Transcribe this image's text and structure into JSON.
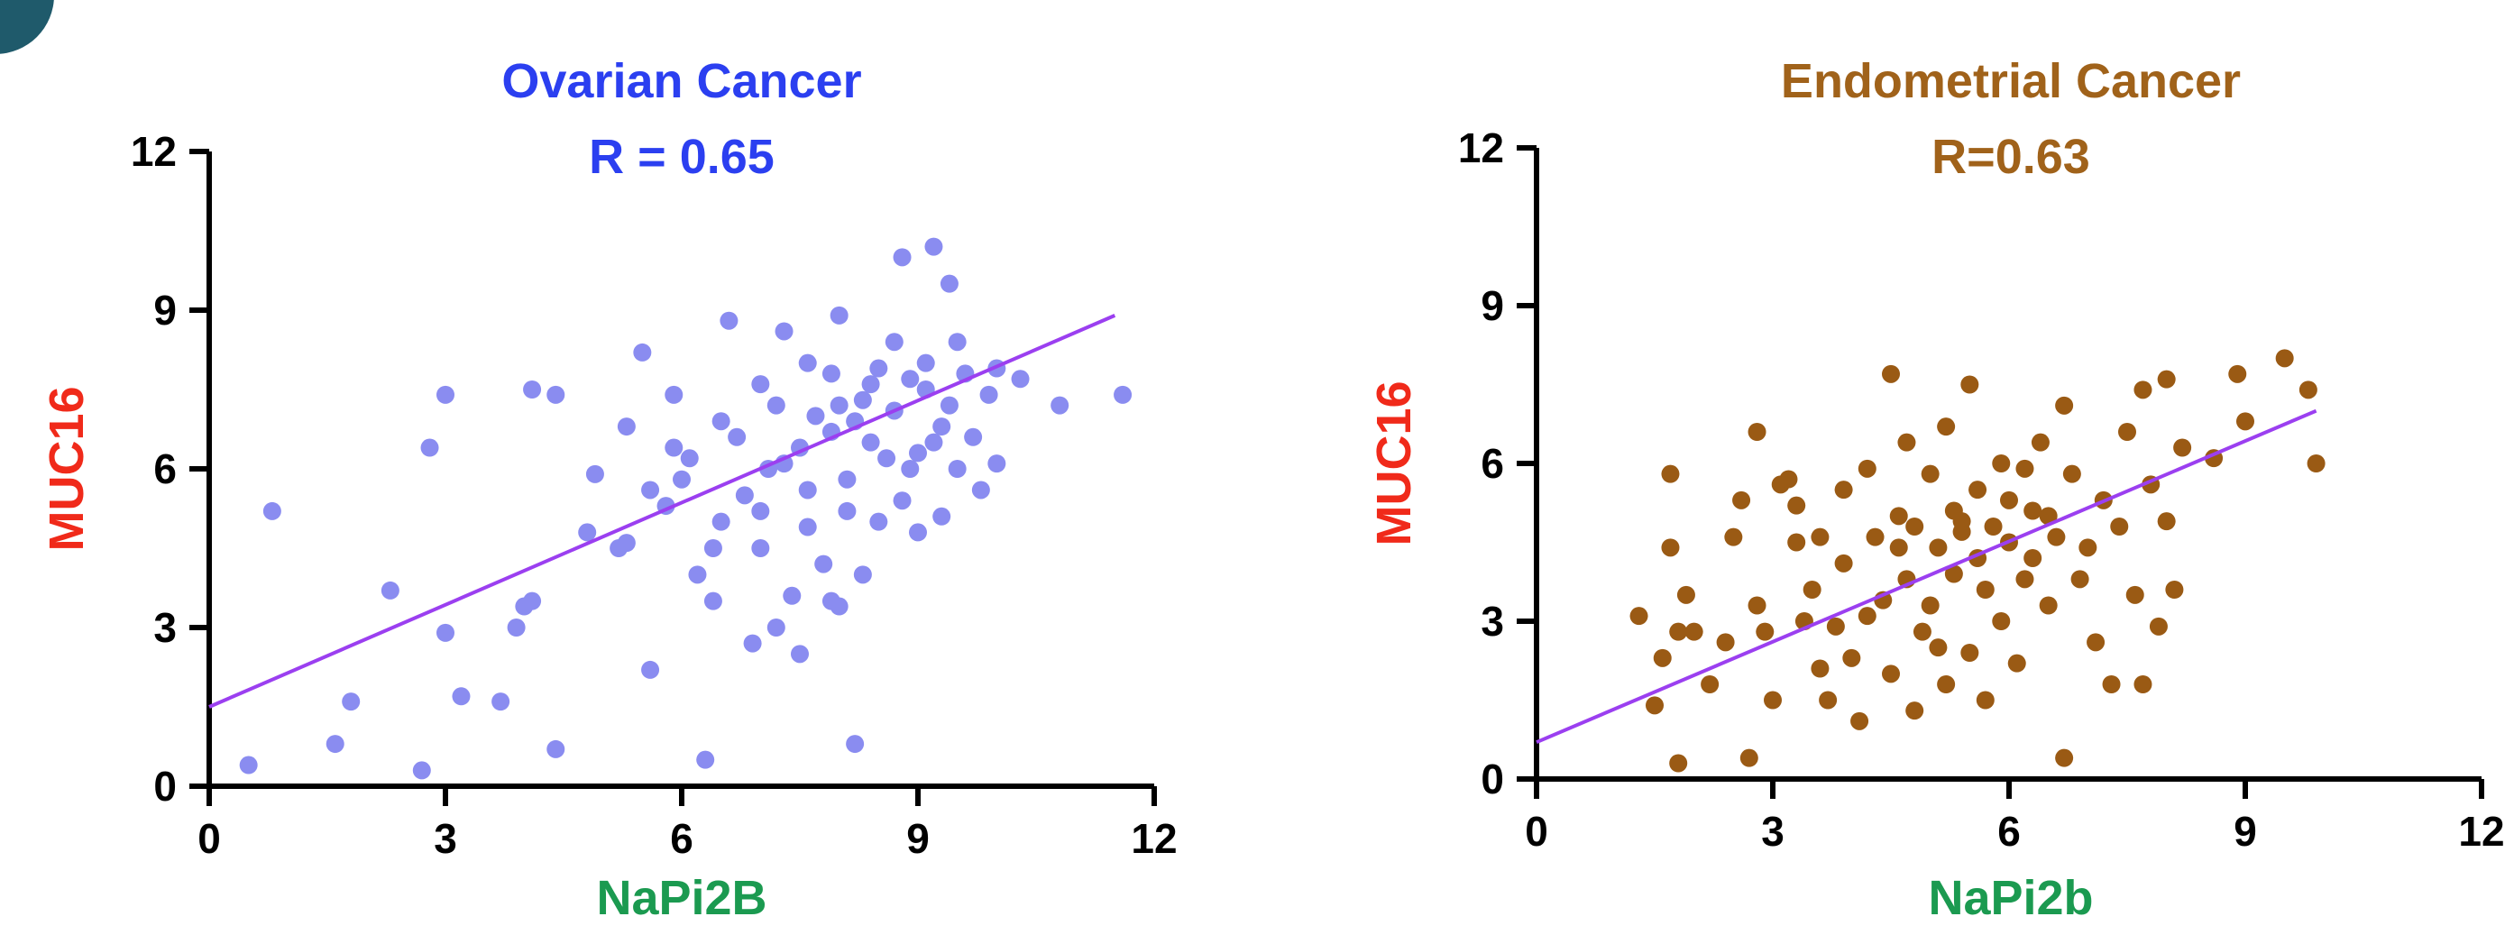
{
  "chart_data": [
    {
      "type": "scatter",
      "title": "Ovarian Cancer",
      "subtitle": "R = 0.65",
      "xlabel": "NaPi2B",
      "ylabel": "MUC16",
      "xlim": [
        0,
        12
      ],
      "ylim": [
        0,
        12
      ],
      "xticks": [
        "0",
        "3",
        "6",
        "9",
        "12"
      ],
      "yticks": [
        "0",
        "3",
        "6",
        "9",
        "12"
      ],
      "colors": {
        "title": "#2b3ff0",
        "points": "#8a8cf0",
        "xlabel": "#1b9a50",
        "ylabel": "#f02a1a",
        "fit": "#9b3ff0"
      },
      "fit_line": {
        "x": [
          0,
          11.5
        ],
        "y": [
          1.5,
          8.9
        ]
      },
      "series": [
        {
          "points": [
            [
              0.5,
              0.4
            ],
            [
              0.8,
              5.2
            ],
            [
              1.6,
              0.8
            ],
            [
              1.8,
              1.6
            ],
            [
              2.3,
              3.7
            ],
            [
              2.7,
              0.3
            ],
            [
              2.8,
              6.4
            ],
            [
              3.0,
              7.4
            ],
            [
              3.0,
              2.9
            ],
            [
              3.2,
              1.7
            ],
            [
              3.7,
              1.6
            ],
            [
              3.9,
              3.0
            ],
            [
              4.0,
              3.4
            ],
            [
              4.1,
              3.5
            ],
            [
              4.1,
              7.5
            ],
            [
              4.4,
              7.4
            ],
            [
              4.4,
              0.7
            ],
            [
              4.8,
              4.8
            ],
            [
              4.9,
              5.9
            ],
            [
              5.2,
              4.5
            ],
            [
              5.3,
              4.6
            ],
            [
              5.3,
              6.8
            ],
            [
              5.5,
              8.2
            ],
            [
              5.6,
              5.6
            ],
            [
              5.6,
              2.2
            ],
            [
              5.8,
              5.3
            ],
            [
              5.9,
              7.4
            ],
            [
              6.1,
              6.2
            ],
            [
              6.2,
              4.0
            ],
            [
              6.3,
              0.5
            ],
            [
              6.4,
              3.5
            ],
            [
              6.5,
              5.0
            ],
            [
              6.6,
              8.8
            ],
            [
              6.7,
              6.6
            ],
            [
              6.8,
              5.5
            ],
            [
              6.9,
              2.7
            ],
            [
              7.0,
              4.5
            ],
            [
              7.0,
              7.6
            ],
            [
              7.1,
              6.0
            ],
            [
              7.2,
              3.0
            ],
            [
              7.3,
              8.6
            ],
            [
              7.4,
              3.6
            ],
            [
              7.5,
              6.4
            ],
            [
              7.5,
              2.5
            ],
            [
              7.6,
              5.6
            ],
            [
              7.6,
              8.0
            ],
            [
              7.7,
              7.0
            ],
            [
              7.8,
              4.2
            ],
            [
              7.9,
              3.5
            ],
            [
              7.9,
              6.7
            ],
            [
              8.0,
              8.9
            ],
            [
              8.0,
              7.2
            ],
            [
              8.0,
              3.4
            ],
            [
              8.1,
              5.8
            ],
            [
              8.2,
              0.8
            ],
            [
              8.2,
              6.9
            ],
            [
              8.3,
              7.3
            ],
            [
              8.3,
              4.0
            ],
            [
              8.4,
              6.5
            ],
            [
              8.5,
              5.0
            ],
            [
              8.5,
              7.9
            ],
            [
              8.6,
              6.2
            ],
            [
              8.7,
              8.4
            ],
            [
              8.7,
              7.1
            ],
            [
              8.8,
              10.0
            ],
            [
              8.8,
              5.4
            ],
            [
              8.9,
              7.7
            ],
            [
              9.0,
              6.3
            ],
            [
              9.0,
              4.8
            ],
            [
              9.1,
              8.0
            ],
            [
              9.1,
              7.5
            ],
            [
              9.2,
              10.2
            ],
            [
              9.3,
              6.8
            ],
            [
              9.3,
              5.1
            ],
            [
              9.4,
              9.5
            ],
            [
              9.4,
              7.2
            ],
            [
              9.5,
              8.4
            ],
            [
              9.5,
              6.0
            ],
            [
              9.6,
              7.8
            ],
            [
              9.7,
              6.6
            ],
            [
              9.8,
              5.6
            ],
            [
              9.9,
              7.4
            ],
            [
              10.0,
              6.1
            ],
            [
              10.0,
              7.9
            ],
            [
              10.3,
              7.7
            ],
            [
              10.8,
              7.2
            ],
            [
              11.6,
              7.4
            ],
            [
              7.2,
              7.2
            ],
            [
              7.6,
              4.9
            ],
            [
              6.0,
              5.8
            ],
            [
              6.5,
              6.9
            ],
            [
              7.0,
              5.2
            ],
            [
              8.9,
              6.0
            ],
            [
              8.4,
              7.6
            ],
            [
              5.9,
              6.4
            ],
            [
              6.4,
              4.5
            ],
            [
              7.3,
              6.1
            ],
            [
              8.1,
              5.2
            ],
            [
              9.2,
              6.5
            ],
            [
              7.9,
              7.8
            ]
          ]
        }
      ]
    },
    {
      "type": "scatter",
      "title": "Endometrial Cancer",
      "subtitle": "R=0.63",
      "xlabel": "NaPi2b",
      "ylabel": "MUC16",
      "xlim": [
        0,
        12
      ],
      "ylim": [
        0,
        12
      ],
      "xticks": [
        "0",
        "3",
        "6",
        "9",
        "12"
      ],
      "yticks": [
        "0",
        "3",
        "6",
        "9",
        "12"
      ],
      "colors": {
        "title": "#a0621a",
        "points": "#9a5a14",
        "xlabel": "#1b9a50",
        "ylabel": "#f02a1a",
        "fit": "#9b3ff0"
      },
      "fit_line": {
        "x": [
          0,
          9.9
        ],
        "y": [
          0.7,
          7.0
        ]
      },
      "series": [
        {
          "points": [
            [
              1.3,
              3.1
            ],
            [
              1.5,
              1.4
            ],
            [
              1.6,
              2.3
            ],
            [
              1.7,
              5.8
            ],
            [
              1.7,
              4.4
            ],
            [
              1.8,
              2.8
            ],
            [
              1.8,
              0.3
            ],
            [
              1.9,
              3.5
            ],
            [
              2.0,
              2.8
            ],
            [
              2.2,
              1.8
            ],
            [
              2.4,
              2.6
            ],
            [
              2.5,
              4.6
            ],
            [
              2.6,
              5.3
            ],
            [
              2.7,
              0.4
            ],
            [
              2.8,
              3.3
            ],
            [
              2.8,
              6.6
            ],
            [
              2.9,
              2.8
            ],
            [
              3.0,
              1.5
            ],
            [
              3.1,
              5.6
            ],
            [
              3.2,
              5.7
            ],
            [
              3.3,
              5.2
            ],
            [
              3.3,
              4.5
            ],
            [
              3.4,
              3.0
            ],
            [
              3.5,
              3.6
            ],
            [
              3.6,
              2.1
            ],
            [
              3.6,
              4.6
            ],
            [
              3.7,
              1.5
            ],
            [
              3.8,
              2.9
            ],
            [
              3.9,
              4.1
            ],
            [
              3.9,
              5.5
            ],
            [
              4.0,
              2.3
            ],
            [
              4.1,
              1.1
            ],
            [
              4.2,
              3.1
            ],
            [
              4.2,
              5.9
            ],
            [
              4.3,
              4.6
            ],
            [
              4.4,
              3.4
            ],
            [
              4.5,
              7.7
            ],
            [
              4.5,
              2.0
            ],
            [
              4.6,
              5.0
            ],
            [
              4.7,
              3.8
            ],
            [
              4.7,
              6.4
            ],
            [
              4.8,
              1.3
            ],
            [
              4.8,
              4.8
            ],
            [
              4.9,
              2.8
            ],
            [
              5.0,
              5.8
            ],
            [
              5.0,
              3.3
            ],
            [
              5.1,
              4.4
            ],
            [
              5.1,
              2.5
            ],
            [
              5.2,
              1.8
            ],
            [
              5.2,
              6.7
            ],
            [
              5.3,
              5.1
            ],
            [
              5.3,
              3.9
            ],
            [
              5.4,
              4.9
            ],
            [
              5.5,
              7.5
            ],
            [
              5.5,
              2.4
            ],
            [
              5.6,
              4.2
            ],
            [
              5.6,
              5.5
            ],
            [
              5.7,
              3.6
            ],
            [
              5.7,
              1.5
            ],
            [
              5.8,
              4.8
            ],
            [
              5.9,
              6.0
            ],
            [
              5.9,
              3.0
            ],
            [
              6.0,
              4.5
            ],
            [
              6.0,
              5.3
            ],
            [
              6.1,
              2.2
            ],
            [
              6.2,
              3.8
            ],
            [
              6.2,
              5.9
            ],
            [
              6.3,
              4.2
            ],
            [
              6.4,
              6.4
            ],
            [
              6.5,
              3.3
            ],
            [
              6.5,
              5.0
            ],
            [
              6.6,
              4.6
            ],
            [
              6.7,
              0.4
            ],
            [
              6.7,
              7.1
            ],
            [
              6.8,
              5.8
            ],
            [
              6.9,
              3.8
            ],
            [
              7.0,
              4.4
            ],
            [
              7.1,
              2.6
            ],
            [
              7.2,
              5.3
            ],
            [
              7.3,
              1.8
            ],
            [
              7.4,
              4.8
            ],
            [
              7.5,
              6.6
            ],
            [
              7.6,
              3.5
            ],
            [
              7.7,
              7.4
            ],
            [
              7.7,
              1.8
            ],
            [
              7.8,
              5.6
            ],
            [
              7.9,
              2.9
            ],
            [
              8.0,
              4.9
            ],
            [
              8.0,
              7.6
            ],
            [
              8.1,
              3.6
            ],
            [
              8.2,
              6.3
            ],
            [
              8.6,
              6.1
            ],
            [
              8.9,
              7.7
            ],
            [
              9.0,
              6.8
            ],
            [
              9.5,
              8.0
            ],
            [
              9.8,
              7.4
            ],
            [
              9.9,
              6.0
            ],
            [
              4.6,
              4.4
            ],
            [
              5.4,
              4.7
            ],
            [
              6.3,
              5.1
            ]
          ]
        }
      ]
    }
  ]
}
